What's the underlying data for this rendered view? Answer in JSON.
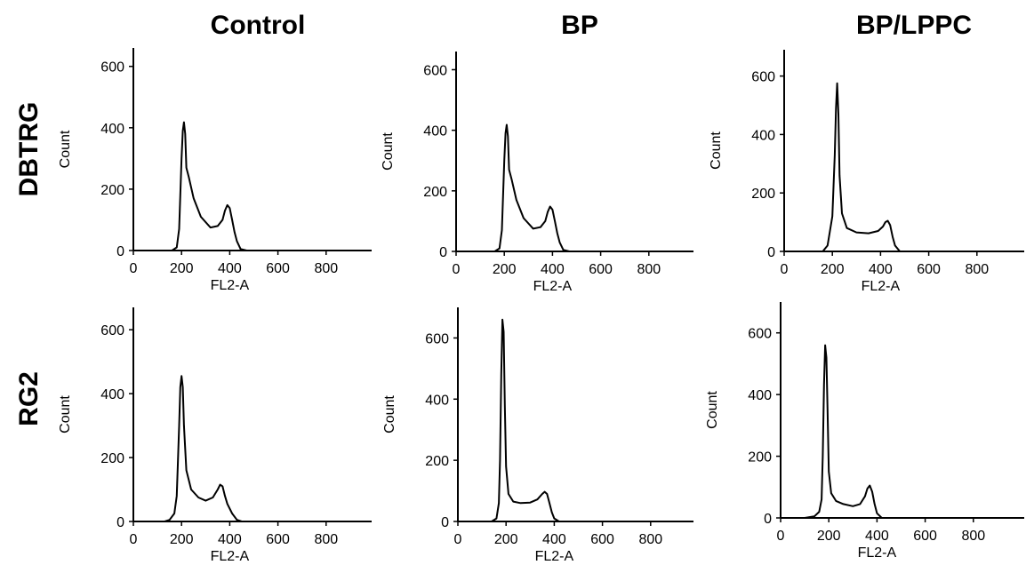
{
  "figure": {
    "column_titles": [
      "Control",
      "BP",
      "BP/LPPC"
    ],
    "row_titles": [
      "DBTRG",
      "RG2"
    ]
  },
  "chart_data": [
    {
      "type": "line",
      "row": "DBTRG",
      "column": "Control",
      "xlabel": "FL2-A",
      "ylabel": "Count",
      "xlim": [
        0,
        950
      ],
      "ylim": [
        0,
        660
      ],
      "xticks": [
        0,
        200,
        400,
        600,
        800
      ],
      "yticks": [
        0,
        200,
        400,
        600
      ],
      "x": [
        160,
        180,
        190,
        200,
        205,
        210,
        215,
        220,
        230,
        250,
        280,
        320,
        350,
        370,
        380,
        390,
        400,
        410,
        420,
        430,
        445,
        470,
        950
      ],
      "y": [
        0,
        10,
        70,
        300,
        390,
        418,
        380,
        270,
        240,
        170,
        110,
        75,
        80,
        100,
        130,
        148,
        138,
        100,
        60,
        30,
        5,
        0,
        0
      ]
    },
    {
      "type": "line",
      "row": "DBTRG",
      "column": "BP",
      "xlabel": "FL2-A",
      "ylabel": "Count",
      "xlim": [
        0,
        950
      ],
      "ylim": [
        0,
        660
      ],
      "xticks": [
        0,
        200,
        400,
        600,
        800
      ],
      "yticks": [
        0,
        200,
        400,
        600
      ],
      "x": [
        160,
        180,
        190,
        200,
        205,
        210,
        215,
        220,
        230,
        250,
        280,
        320,
        350,
        370,
        380,
        390,
        400,
        410,
        420,
        430,
        445,
        470,
        950
      ],
      "y": [
        0,
        10,
        70,
        300,
        390,
        418,
        380,
        270,
        240,
        170,
        110,
        75,
        80,
        100,
        130,
        148,
        138,
        100,
        60,
        30,
        5,
        0,
        0
      ]
    },
    {
      "type": "line",
      "row": "DBTRG",
      "column": "BP/LPPC",
      "xlabel": "FL2-A",
      "ylabel": "Count",
      "xlim": [
        0,
        950
      ],
      "ylim": [
        0,
        690
      ],
      "xticks": [
        0,
        200,
        400,
        600,
        800
      ],
      "yticks": [
        0,
        200,
        400,
        600
      ],
      "x": [
        160,
        180,
        200,
        210,
        215,
        220,
        225,
        230,
        240,
        260,
        300,
        350,
        390,
        410,
        420,
        430,
        440,
        450,
        460,
        480,
        950
      ],
      "y": [
        0,
        20,
        120,
        330,
        490,
        575,
        470,
        260,
        130,
        80,
        65,
        62,
        70,
        85,
        100,
        105,
        90,
        50,
        20,
        0,
        0
      ]
    },
    {
      "type": "line",
      "row": "RG2",
      "column": "Control",
      "xlabel": "FL2-A",
      "ylabel": "Count",
      "xlim": [
        0,
        950
      ],
      "ylim": [
        0,
        670
      ],
      "xticks": [
        0,
        200,
        400,
        600,
        800
      ],
      "yticks": [
        0,
        200,
        400,
        600
      ],
      "x": [
        130,
        150,
        170,
        180,
        190,
        195,
        200,
        205,
        210,
        220,
        240,
        270,
        300,
        330,
        350,
        360,
        370,
        380,
        390,
        410,
        430,
        450,
        950
      ],
      "y": [
        0,
        5,
        25,
        80,
        300,
        420,
        455,
        420,
        300,
        160,
        100,
        75,
        65,
        75,
        100,
        115,
        110,
        80,
        55,
        25,
        5,
        0,
        0
      ]
    },
    {
      "type": "line",
      "row": "RG2",
      "column": "BP",
      "xlabel": "FL2-A",
      "ylabel": "Count",
      "xlim": [
        0,
        950
      ],
      "ylim": [
        0,
        700
      ],
      "xticks": [
        0,
        200,
        400,
        600,
        800
      ],
      "yticks": [
        0,
        200,
        400,
        600
      ],
      "x": [
        140,
        160,
        170,
        175,
        180,
        185,
        190,
        195,
        200,
        210,
        230,
        260,
        300,
        330,
        350,
        360,
        370,
        380,
        390,
        400,
        420,
        950
      ],
      "y": [
        0,
        10,
        60,
        200,
        480,
        660,
        620,
        380,
        180,
        90,
        65,
        60,
        62,
        72,
        90,
        97,
        90,
        60,
        30,
        10,
        0,
        0
      ]
    },
    {
      "type": "line",
      "row": "RG2",
      "column": "BP/LPPC",
      "xlabel": "FL2-A",
      "ylabel": "Count",
      "xlim": [
        0,
        950
      ],
      "ylim": [
        0,
        700
      ],
      "xticks": [
        0,
        200,
        400,
        600,
        800
      ],
      "yticks": [
        0,
        200,
        400,
        600
      ],
      "x": [
        100,
        140,
        160,
        170,
        175,
        180,
        185,
        190,
        195,
        200,
        210,
        230,
        260,
        300,
        330,
        350,
        360,
        370,
        380,
        390,
        400,
        420,
        950
      ],
      "y": [
        0,
        5,
        20,
        60,
        200,
        430,
        560,
        520,
        350,
        150,
        80,
        55,
        45,
        38,
        45,
        70,
        95,
        105,
        85,
        45,
        15,
        0,
        0
      ]
    }
  ]
}
